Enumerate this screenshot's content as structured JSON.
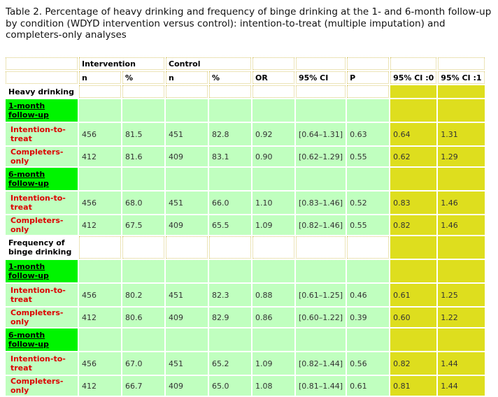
{
  "caption": "Table 2. Percentage of heavy drinking and frequency of binge drinking at the 1- and 6-month follow-up by condition (WDYD intervention versus control): intention-to-treat (multiple imputation) and completers-only analyses",
  "header": {
    "group_intervention": "Intervention",
    "group_control": "Control",
    "cols": [
      "n",
      "%",
      "n",
      "%",
      "OR",
      "95% CI",
      "P",
      "95% CI :0",
      "95% CI :1"
    ]
  },
  "sections": [
    {
      "title": "Heavy drinking",
      "followups": [
        {
          "label": "1-month follow-up",
          "rows": [
            {
              "label": "Intention-to-treat",
              "n1": "456",
              "p1": "81.5",
              "n2": "451",
              "p2": "82.8",
              "or": "0.92",
              "ci": "[0.64–1.31]",
              "p": "0.63",
              "lo": "0.64",
              "hi": "1.31"
            },
            {
              "label": "Completers-only",
              "n1": "412",
              "p1": "81.6",
              "n2": "409",
              "p2": "83.1",
              "or": "0.90",
              "ci": "[0.62–1.29]",
              "p": "0.55",
              "lo": "0.62",
              "hi": "1.29"
            }
          ]
        },
        {
          "label": "6-month follow-up",
          "rows": [
            {
              "label": "Intention-to-treat",
              "n1": "456",
              "p1": "68.0",
              "n2": "451",
              "p2": "66.0",
              "or": "1.10",
              "ci": "[0.83–1.46]",
              "p": "0.52",
              "lo": "0.83",
              "hi": "1.46"
            },
            {
              "label": "Completers-only",
              "n1": "412",
              "p1": "67.5",
              "n2": "409",
              "p2": "65.5",
              "or": "1.09",
              "ci": "[0.82–1.46]",
              "p": "0.55",
              "lo": "0.82",
              "hi": "1.46"
            }
          ]
        }
      ]
    },
    {
      "title": "Frequency of binge drinking",
      "followups": [
        {
          "label": "1-month follow-up",
          "rows": [
            {
              "label": "Intention-to-treat",
              "n1": "456",
              "p1": "80.2",
              "n2": "451",
              "p2": "82.3",
              "or": "0.88",
              "ci": "[0.61–1.25]",
              "p": "0.46",
              "lo": "0.61",
              "hi": "1.25"
            },
            {
              "label": "Completers-only",
              "n1": "412",
              "p1": "80.6",
              "n2": "409",
              "p2": "82.9",
              "or": "0.86",
              "ci": "[0.60–1.22]",
              "p": "0.39",
              "lo": "0.60",
              "hi": "1.22"
            }
          ]
        },
        {
          "label": "6-month follow-up",
          "rows": [
            {
              "label": "Intention-to-treat",
              "n1": "456",
              "p1": "67.0",
              "n2": "451",
              "p2": "65.2",
              "or": "1.09",
              "ci": "[0.82–1.44]",
              "p": "0.56",
              "lo": "0.82",
              "hi": "1.44"
            },
            {
              "label": "Completers-only",
              "n1": "412",
              "p1": "66.7",
              "n2": "409",
              "p2": "65.0",
              "or": "1.08",
              "ci": "[0.81–1.44]",
              "p": "0.61",
              "lo": "0.81",
              "hi": "1.44"
            }
          ]
        }
      ]
    }
  ]
}
